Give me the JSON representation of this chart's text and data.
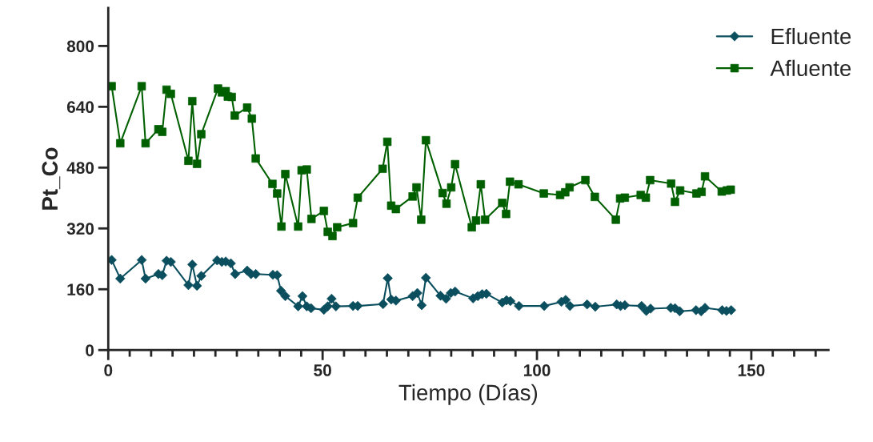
{
  "chart_data": {
    "type": "line",
    "xlabel": "Tiempo (Días)",
    "ylabel": "Pt_Co",
    "xlim": [
      0,
      168
    ],
    "ylim": [
      0,
      900
    ],
    "xticks": [
      0,
      {
        "value": 5,
        "label": null
      },
      {
        "value": 10,
        "label": null
      },
      {
        "value": 15,
        "label": null
      },
      {
        "value": 20,
        "label": null
      },
      {
        "value": 25,
        "label": null
      },
      {
        "value": 30,
        "label": null
      },
      {
        "value": 35,
        "label": null
      },
      {
        "value": 40,
        "label": null
      },
      {
        "value": 45,
        "label": null
      },
      50,
      {
        "value": 55,
        "label": null
      },
      {
        "value": 60,
        "label": null
      },
      {
        "value": 65,
        "label": null
      },
      {
        "value": 70,
        "label": null
      },
      {
        "value": 75,
        "label": null
      },
      {
        "value": 80,
        "label": null
      },
      {
        "value": 85,
        "label": null
      },
      {
        "value": 90,
        "label": null
      },
      {
        "value": 95,
        "label": null
      },
      100,
      {
        "value": 105,
        "label": null
      },
      {
        "value": 110,
        "label": null
      },
      {
        "value": 115,
        "label": null
      },
      {
        "value": 120,
        "label": null
      },
      {
        "value": 125,
        "label": null
      },
      {
        "value": 130,
        "label": null
      },
      {
        "value": 135,
        "label": null
      },
      {
        "value": 140,
        "label": null
      },
      {
        "value": 145,
        "label": null
      },
      150,
      {
        "value": 155,
        "label": null
      },
      {
        "value": 160,
        "label": null
      },
      {
        "value": 165,
        "label": null
      }
    ],
    "yticks": [
      0,
      160,
      320,
      480,
      640,
      800
    ],
    "grid": false,
    "legend": "top right",
    "line_style": "solid",
    "series": [
      {
        "name": "Efluente",
        "color": "#0b4f5f",
        "marker": "diamond",
        "x": [
          0.8,
          2.8,
          7.8,
          8.7,
          11.7,
          12.6,
          13.6,
          14.6,
          18.7,
          19.6,
          20.7,
          21.7,
          25.4,
          26.5,
          27.4,
          28.6,
          29.6,
          32.4,
          33.3,
          34.4,
          38.4,
          39.4,
          40.3,
          41.3,
          44.3,
          45.3,
          46.3,
          47.3,
          50.3,
          51.2,
          52.1,
          53.1,
          57.1,
          58.2,
          64.1,
          65.2,
          66.0,
          67.1,
          71.0,
          72.1,
          73.1,
          74.1,
          77.5,
          78.8,
          79.9,
          80.9,
          85.1,
          86.2,
          87.2,
          88.2,
          91.9,
          92.9,
          93.8,
          95.8,
          101.7,
          105.7,
          106.7,
          107.7,
          111.7,
          113.6,
          118.6,
          119.5,
          120.5,
          124.4,
          125.5,
          126.5,
          131.2,
          132.2,
          133.3,
          137.1,
          138.3,
          139.2,
          143.2,
          144.2,
          145.3
        ],
        "values": [
          237,
          188,
          237,
          188,
          200,
          197,
          235,
          232,
          171,
          225,
          169,
          195,
          236,
          232,
          233,
          228,
          200,
          209,
          200,
          200,
          198,
          197,
          156,
          142,
          115,
          142,
          115,
          110,
          106,
          115,
          135,
          115,
          116,
          116,
          121,
          189,
          133,
          130,
          142,
          150,
          118,
          190,
          143,
          135,
          150,
          154,
          136,
          142,
          147,
          148,
          125,
          131,
          129,
          116,
          116,
          127,
          132,
          116,
          120,
          114,
          120,
          116,
          118,
          116,
          103,
          109,
          111,
          110,
          102,
          105,
          102,
          111,
          105,
          103,
          105
        ]
      },
      {
        "name": "Afluente",
        "color": "#006000",
        "marker": "square",
        "x": [
          0.8,
          2.8,
          7.8,
          8.7,
          11.7,
          12.6,
          13.6,
          14.6,
          18.7,
          19.6,
          20.7,
          21.7,
          25.6,
          26.5,
          27.4,
          27.9,
          28.8,
          29.5,
          32.4,
          33.5,
          34.4,
          38.3,
          39.4,
          40.4,
          41.3,
          44.3,
          45.1,
          46.3,
          47.4,
          50.3,
          51.2,
          52.3,
          53.4,
          57.1,
          58.2,
          64.0,
          65.1,
          66.0,
          67.1,
          71.0,
          71.9,
          73.0,
          74.1,
          78.0,
          78.9,
          80.0,
          80.9,
          84.8,
          85.8,
          86.9,
          87.9,
          91.9,
          92.8,
          93.7,
          95.7,
          101.6,
          105.4,
          106.6,
          107.6,
          111.3,
          113.5,
          118.4,
          119.4,
          120.5,
          124.2,
          125.4,
          126.4,
          131.3,
          132.2,
          133.4,
          137.2,
          138.4,
          139.2,
          143.1,
          144.3,
          145.2
        ],
        "values": [
          694,
          544,
          694,
          544,
          581,
          574,
          685,
          674,
          498,
          655,
          490,
          568,
          688,
          678,
          681,
          667,
          666,
          617,
          638,
          609,
          504,
          437,
          412,
          325,
          463,
          325,
          473,
          475,
          345,
          366,
          311,
          300,
          323,
          334,
          401,
          477,
          548,
          380,
          371,
          404,
          428,
          343,
          552,
          413,
          385,
          428,
          489,
          323,
          341,
          436,
          343,
          387,
          358,
          443,
          436,
          412,
          408,
          415,
          428,
          447,
          403,
          343,
          399,
          401,
          408,
          401,
          447,
          438,
          390,
          420,
          412,
          416,
          457,
          417,
          420,
          422
        ]
      }
    ]
  }
}
